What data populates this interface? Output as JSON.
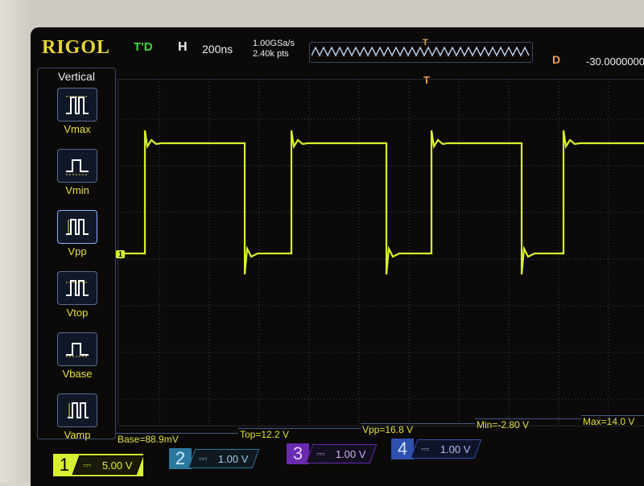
{
  "header": {
    "brand": "RIGOL",
    "trigger_status": "T'D",
    "horizontal_label": "H",
    "timebase": "200ns",
    "sample_rate": "1.00GSa/s",
    "memory_depth": "2.40k pts",
    "trigger_marker": "T",
    "delay_label": "D",
    "delay_value": "-30.0000000"
  },
  "sidebar": {
    "title": "Vertical",
    "items": [
      {
        "label": "Vmax",
        "icon": "vmax-icon"
      },
      {
        "label": "Vmin",
        "icon": "vmin-icon"
      },
      {
        "label": "Vpp",
        "icon": "vpp-icon"
      },
      {
        "label": "Vtop",
        "icon": "vtop-icon"
      },
      {
        "label": "Vbase",
        "icon": "vbase-icon"
      },
      {
        "label": "Vamp",
        "icon": "vamp-icon"
      }
    ]
  },
  "channel1_marker": "1",
  "measurements": [
    {
      "text": "Base=88.9mV"
    },
    {
      "text": "Top=12.2 V"
    },
    {
      "text": "Vpp=16.8 V"
    },
    {
      "text": "Min=-2.80 V"
    },
    {
      "text": "Max=14.0 V"
    }
  ],
  "channels": [
    {
      "number": "1",
      "coupling": "⎓",
      "scale": "5.00 V",
      "color": "#d8f030"
    },
    {
      "number": "2",
      "coupling": "⎓",
      "scale": "1.00 V",
      "color": "#3aa0d0"
    },
    {
      "number": "3",
      "coupling": "⎓",
      "scale": "1.00 V",
      "color": "#8a40d0"
    },
    {
      "number": "4",
      "coupling": "⎓",
      "scale": "1.00 V",
      "color": "#4060d0"
    }
  ],
  "colors": {
    "trace": "#d8f030",
    "trigger": "#f0a060",
    "grid": "#3a4660"
  }
}
